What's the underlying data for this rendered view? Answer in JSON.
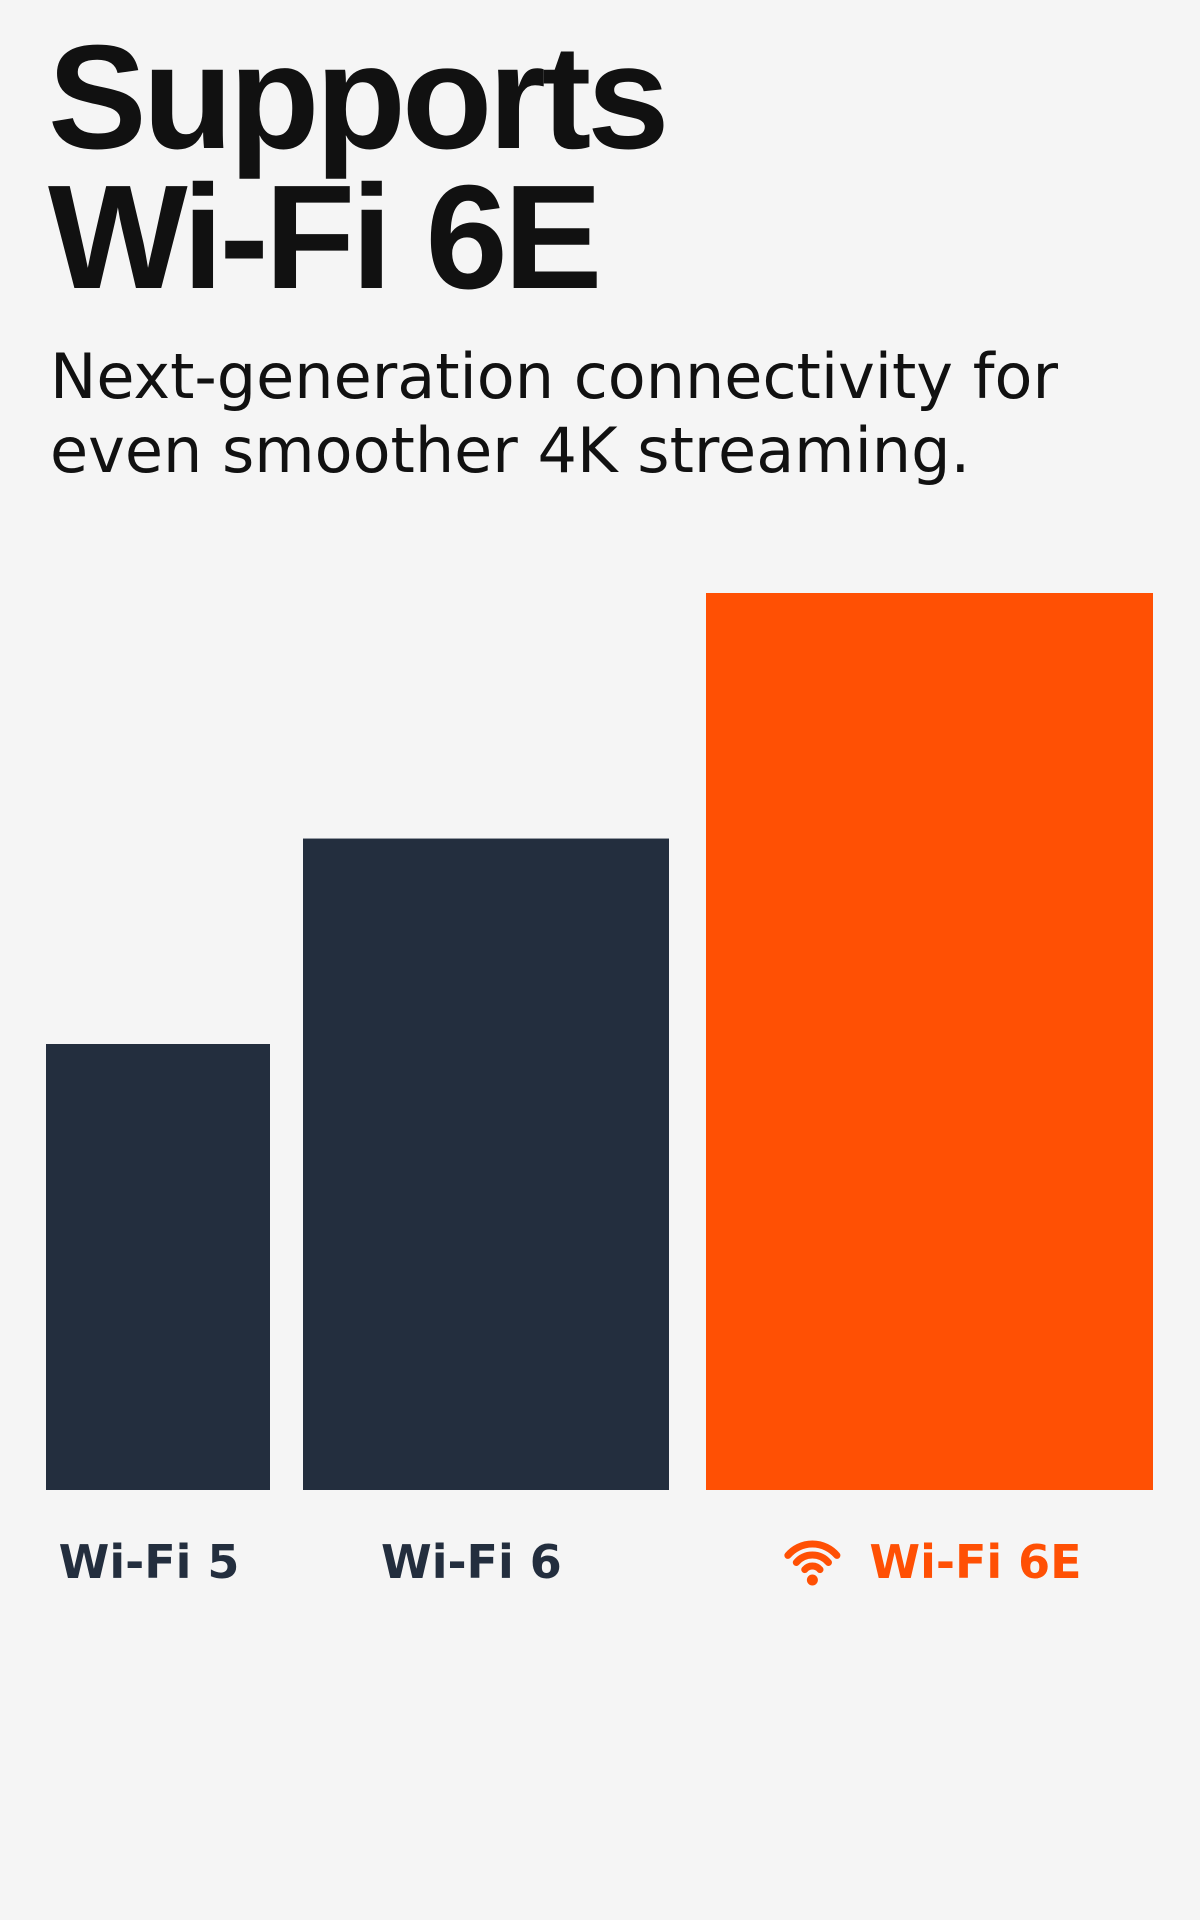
{
  "headline": {
    "line1": "Supports",
    "line2": "Wi-Fi 6E"
  },
  "subtitle": {
    "line1": "Next-generation connectivity for",
    "line2": "even smoother 4K streaming."
  },
  "colors": {
    "background": "#f5f5f5",
    "text": "#111111",
    "bar_dark": "#232e3e",
    "accent": "#ff5004"
  },
  "chart_data": {
    "type": "bar",
    "categories": [
      "Wi-Fi 5",
      "Wi-Fi 6",
      "Wi-Fi 6E"
    ],
    "values": [
      445,
      650,
      895
    ],
    "highlight": "Wi-Fi 6E",
    "highlight_icon": "wifi-icon",
    "title": "",
    "xlabel": "",
    "ylabel": "",
    "grid": false,
    "axes_visible": false
  }
}
